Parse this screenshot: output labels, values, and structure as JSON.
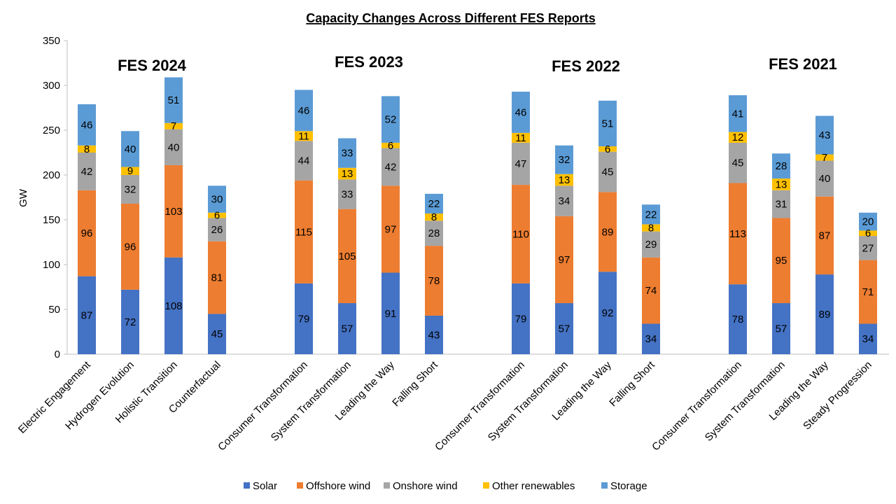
{
  "chart_data": {
    "type": "bar",
    "stacked": true,
    "title": "Capacity Changes Across Different FES Reports",
    "xlabel": "",
    "ylabel": "GW",
    "ylim": [
      0,
      350
    ],
    "yticks": [
      0,
      50,
      100,
      150,
      200,
      250,
      300,
      350
    ],
    "grid": false,
    "legend_position": "bottom",
    "groups": [
      {
        "name": "FES 2024",
        "categories": [
          "Electric Engagement",
          "Hydrogen Evolution",
          "Holistic Transition",
          "Counterfactual"
        ]
      },
      {
        "name": "FES 2023",
        "categories": [
          "Consumer Transformation",
          "System Transformation",
          "Leading the Way",
          "Falling Short"
        ]
      },
      {
        "name": "FES 2022",
        "categories": [
          "Consumer Transformation",
          "System Transformation",
          "Leading the Way",
          "Falling Short"
        ]
      },
      {
        "name": "FES 2021",
        "categories": [
          "Consumer Transformation",
          "System Transformation",
          "Leading the Way",
          "Steady Progression"
        ]
      }
    ],
    "series": [
      {
        "name": "Solar",
        "color": "#4472C4",
        "values": [
          87,
          72,
          108,
          45,
          79,
          57,
          91,
          43,
          79,
          57,
          92,
          34,
          78,
          57,
          89,
          34
        ]
      },
      {
        "name": "Offshore wind",
        "color": "#ED7D31",
        "values": [
          96,
          96,
          103,
          81,
          115,
          105,
          97,
          78,
          110,
          97,
          89,
          74,
          113,
          95,
          87,
          71
        ]
      },
      {
        "name": "Onshore wind",
        "color": "#A5A5A5",
        "values": [
          42,
          32,
          40,
          26,
          44,
          33,
          42,
          28,
          47,
          34,
          45,
          29,
          45,
          31,
          40,
          27
        ]
      },
      {
        "name": "Other renewables",
        "color": "#FFC000",
        "values": [
          8,
          9,
          7,
          6,
          11,
          13,
          6,
          8,
          11,
          13,
          6,
          8,
          12,
          13,
          7,
          6
        ]
      },
      {
        "name": "Storage",
        "color": "#5B9BD5",
        "values": [
          46,
          40,
          51,
          30,
          46,
          33,
          52,
          22,
          46,
          32,
          51,
          22,
          41,
          28,
          43,
          20
        ]
      }
    ]
  }
}
